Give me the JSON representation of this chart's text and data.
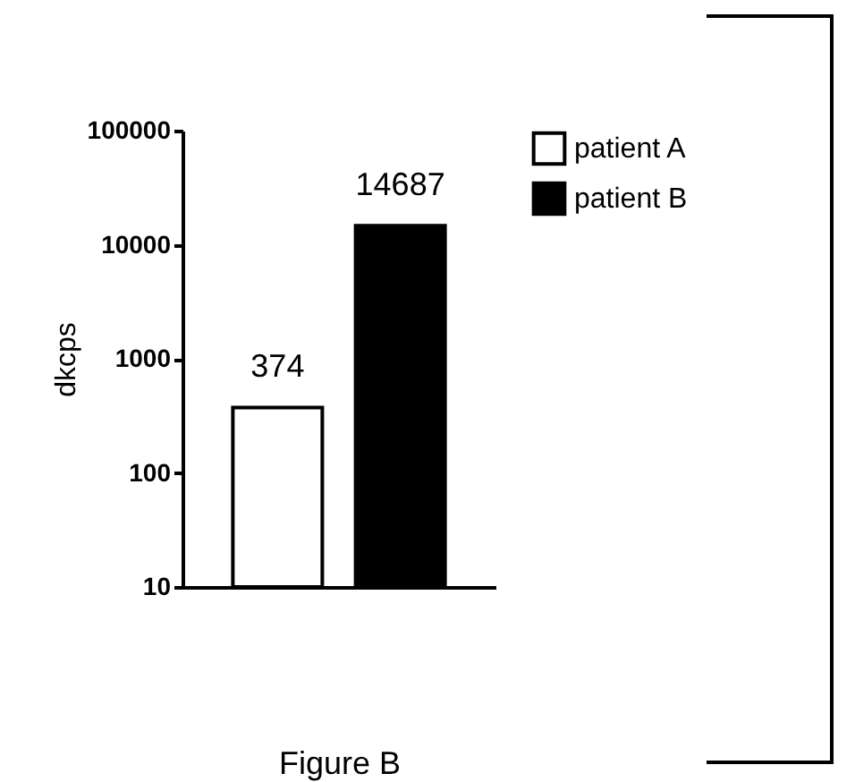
{
  "chart_data": {
    "type": "bar",
    "ylabel": "dkcps",
    "xlabel": "Figure B",
    "categories": [
      null,
      null
    ],
    "series": [
      {
        "name": "patient A",
        "color": "#ffffff",
        "values": [
          374,
          null
        ]
      },
      {
        "name": "patient B",
        "color": "#000000",
        "values": [
          null,
          14687
        ]
      }
    ],
    "log": true,
    "ylim": [
      10,
      100000
    ],
    "yticks": [
      10,
      100,
      1000,
      10000,
      100000
    ],
    "data_labels": true,
    "legend": "right",
    "grid": false,
    "tick_labels": "y"
  }
}
